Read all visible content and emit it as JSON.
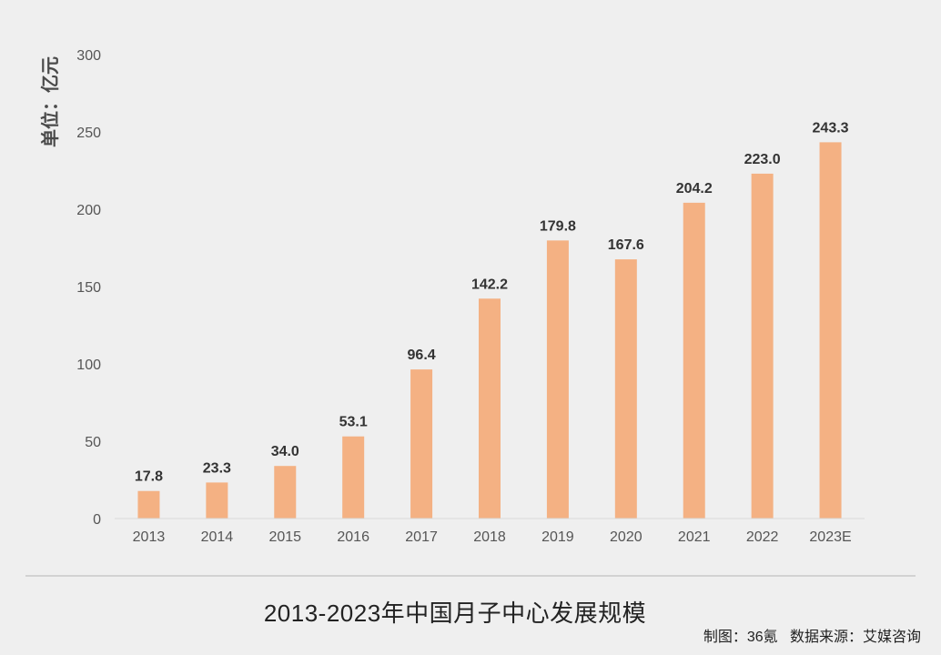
{
  "chart_data": {
    "type": "bar",
    "title": "2013-2023年中国月子中心发展规模",
    "ylabel": "单位：亿元",
    "xlabel": "",
    "source": "制图：36氪   数据来源：艾媒咨询",
    "categories": [
      "2013",
      "2014",
      "2015",
      "2016",
      "2017",
      "2018",
      "2019",
      "2020",
      "2021",
      "2022",
      "2023E"
    ],
    "values": [
      17.8,
      23.3,
      34.0,
      53.1,
      96.4,
      142.2,
      179.8,
      167.6,
      204.2,
      223.0,
      243.3
    ],
    "value_labels": [
      "17.8",
      "23.3",
      "34.0",
      "53.1",
      "96.4",
      "142.2",
      "179.8",
      "167.6",
      "204.2",
      "223.0",
      "243.3"
    ],
    "ylim": [
      0,
      300
    ],
    "yticks": [
      "0",
      "50",
      "100",
      "150",
      "200",
      "250",
      "300"
    ],
    "grid": false,
    "legend": "none",
    "bar_color": "#f4b183",
    "axis_color": "#d9d9d9"
  }
}
